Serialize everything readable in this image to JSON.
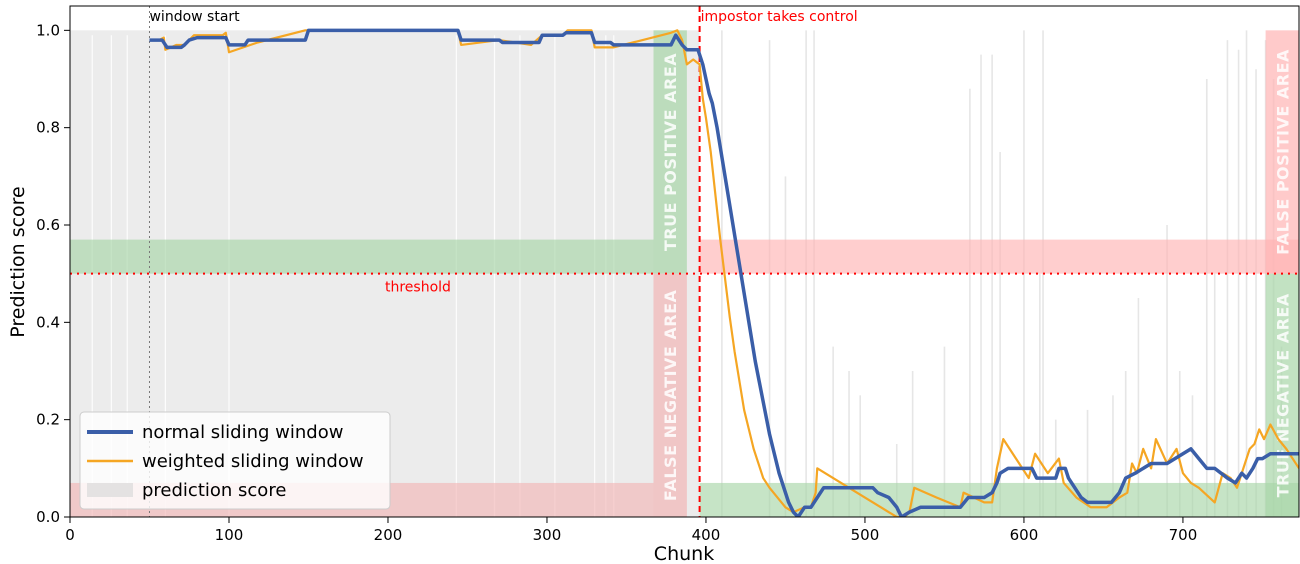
{
  "chart_data": {
    "type": "line",
    "xlabel": "Chunk",
    "ylabel": "Prediction score",
    "xlim": [
      0,
      773
    ],
    "ylim": [
      0,
      1.05
    ],
    "x_ticks": [
      0,
      100,
      200,
      300,
      400,
      500,
      600,
      700
    ],
    "y_ticks": [
      0.0,
      0.2,
      0.4,
      0.6,
      0.8,
      1.0
    ],
    "y_tick_labels": [
      "0.0",
      "0.2",
      "0.4",
      "0.6",
      "0.8",
      "1.0"
    ],
    "threshold": {
      "value": 0.5,
      "label": "threshold",
      "color": "#ff0000"
    },
    "window_start": {
      "x": 50,
      "label": "window start"
    },
    "impostor": {
      "x": 396,
      "label": "impostor takes control",
      "color": "#ff0000"
    },
    "areas": [
      {
        "label": "TRUE POSITIVE AREA",
        "color": "#a8d5a8",
        "x_range": [
          0,
          367
        ],
        "y_range": [
          0.5,
          0.57
        ]
      },
      {
        "label": "FALSE NEGATIVE AREA",
        "color": "#f2b7b7",
        "x_range": [
          0,
          367
        ],
        "y_range": [
          0,
          0.07
        ]
      },
      {
        "label": "FALSE POSITIVE AREA",
        "color": "#ffb3b3",
        "x_range": [
          396,
          773
        ],
        "y_range": [
          0.5,
          0.57
        ]
      },
      {
        "label": "TRUE NEGATIVE AREA",
        "color": "#a8d5a8",
        "x_range": [
          396,
          773
        ],
        "y_range": [
          0,
          0.07
        ]
      }
    ],
    "series": [
      {
        "name": "normal sliding window",
        "color": "#3a5ea8",
        "points": [
          [
            50,
            0.98
          ],
          [
            58,
            0.98
          ],
          [
            60,
            0.97
          ],
          [
            61,
            0.965
          ],
          [
            70,
            0.965
          ],
          [
            72,
            0.97
          ],
          [
            75,
            0.98
          ],
          [
            80,
            0.985
          ],
          [
            98,
            0.985
          ],
          [
            100,
            0.97
          ],
          [
            110,
            0.97
          ],
          [
            112,
            0.98
          ],
          [
            148,
            0.98
          ],
          [
            150,
            1.0
          ],
          [
            244,
            1.0
          ],
          [
            246,
            0.98
          ],
          [
            270,
            0.98
          ],
          [
            272,
            0.975
          ],
          [
            295,
            0.975
          ],
          [
            297,
            0.99
          ],
          [
            310,
            0.99
          ],
          [
            312,
            0.995
          ],
          [
            328,
            0.995
          ],
          [
            330,
            0.975
          ],
          [
            340,
            0.975
          ],
          [
            342,
            0.97
          ],
          [
            375,
            0.97
          ],
          [
            378,
            0.97
          ],
          [
            381,
            0.99
          ],
          [
            385,
            0.97
          ],
          [
            388,
            0.96
          ],
          [
            395,
            0.96
          ],
          [
            398,
            0.93
          ],
          [
            402,
            0.87
          ],
          [
            404,
            0.85
          ],
          [
            407,
            0.8
          ],
          [
            410,
            0.74
          ],
          [
            413,
            0.68
          ],
          [
            416,
            0.62
          ],
          [
            419,
            0.56
          ],
          [
            422,
            0.5
          ],
          [
            425,
            0.44
          ],
          [
            428,
            0.38
          ],
          [
            431,
            0.32
          ],
          [
            434,
            0.27
          ],
          [
            437,
            0.22
          ],
          [
            440,
            0.17
          ],
          [
            443,
            0.13
          ],
          [
            446,
            0.09
          ],
          [
            449,
            0.06
          ],
          [
            452,
            0.03
          ],
          [
            455,
            0.01
          ],
          [
            458,
            0.0
          ],
          [
            462,
            0.02
          ],
          [
            466,
            0.02
          ],
          [
            470,
            0.04
          ],
          [
            474,
            0.06
          ],
          [
            490,
            0.06
          ],
          [
            505,
            0.06
          ],
          [
            508,
            0.05
          ],
          [
            515,
            0.04
          ],
          [
            520,
            0.02
          ],
          [
            523,
            0.0
          ],
          [
            528,
            0.01
          ],
          [
            535,
            0.02
          ],
          [
            560,
            0.02
          ],
          [
            565,
            0.04
          ],
          [
            575,
            0.04
          ],
          [
            580,
            0.05
          ],
          [
            583,
            0.07
          ],
          [
            585,
            0.09
          ],
          [
            590,
            0.1
          ],
          [
            605,
            0.1
          ],
          [
            608,
            0.08
          ],
          [
            620,
            0.08
          ],
          [
            622,
            0.1
          ],
          [
            626,
            0.1
          ],
          [
            628,
            0.08
          ],
          [
            632,
            0.06
          ],
          [
            636,
            0.04
          ],
          [
            640,
            0.03
          ],
          [
            655,
            0.03
          ],
          [
            660,
            0.05
          ],
          [
            664,
            0.08
          ],
          [
            670,
            0.09
          ],
          [
            675,
            0.1
          ],
          [
            680,
            0.11
          ],
          [
            690,
            0.11
          ],
          [
            695,
            0.12
          ],
          [
            700,
            0.13
          ],
          [
            705,
            0.14
          ],
          [
            710,
            0.12
          ],
          [
            715,
            0.1
          ],
          [
            720,
            0.1
          ],
          [
            728,
            0.08
          ],
          [
            733,
            0.07
          ],
          [
            737,
            0.09
          ],
          [
            740,
            0.08
          ],
          [
            744,
            0.1
          ],
          [
            747,
            0.12
          ],
          [
            750,
            0.12
          ],
          [
            755,
            0.13
          ],
          [
            773,
            0.13
          ]
        ]
      },
      {
        "name": "weighted sliding window",
        "color": "#f5a623",
        "points": [
          [
            50,
            0.98
          ],
          [
            56,
            0.98
          ],
          [
            59,
            0.985
          ],
          [
            60,
            0.96
          ],
          [
            67,
            0.97
          ],
          [
            72,
            0.97
          ],
          [
            78,
            0.99
          ],
          [
            96,
            0.99
          ],
          [
            98,
            0.995
          ],
          [
            100,
            0.955
          ],
          [
            118,
            0.975
          ],
          [
            148,
            1.0
          ],
          [
            244,
            1.0
          ],
          [
            246,
            0.97
          ],
          [
            270,
            0.98
          ],
          [
            290,
            0.97
          ],
          [
            297,
            0.99
          ],
          [
            310,
            0.99
          ],
          [
            313,
            1.0
          ],
          [
            328,
            1.0
          ],
          [
            330,
            0.965
          ],
          [
            342,
            0.965
          ],
          [
            378,
            0.995
          ],
          [
            382,
            1.0
          ],
          [
            385,
            0.98
          ],
          [
            388,
            0.93
          ],
          [
            392,
            0.94
          ],
          [
            394,
            0.935
          ],
          [
            396,
            0.93
          ],
          [
            398,
            0.86
          ],
          [
            400,
            0.82
          ],
          [
            403,
            0.75
          ],
          [
            406,
            0.66
          ],
          [
            409,
            0.57
          ],
          [
            412,
            0.49
          ],
          [
            415,
            0.41
          ],
          [
            418,
            0.34
          ],
          [
            421,
            0.28
          ],
          [
            424,
            0.22
          ],
          [
            427,
            0.18
          ],
          [
            430,
            0.14
          ],
          [
            433,
            0.11
          ],
          [
            436,
            0.08
          ],
          [
            440,
            0.06
          ],
          [
            445,
            0.04
          ],
          [
            450,
            0.02
          ],
          [
            455,
            0.01
          ],
          [
            462,
            0.02
          ],
          [
            466,
            0.02
          ],
          [
            469,
            0.05
          ],
          [
            470,
            0.1
          ],
          [
            485,
            0.07
          ],
          [
            500,
            0.04
          ],
          [
            515,
            0.01
          ],
          [
            520,
            0.0
          ],
          [
            525,
            0.0
          ],
          [
            528,
            0.01
          ],
          [
            531,
            0.06
          ],
          [
            545,
            0.04
          ],
          [
            560,
            0.02
          ],
          [
            562,
            0.05
          ],
          [
            575,
            0.03
          ],
          [
            580,
            0.03
          ],
          [
            583,
            0.1
          ],
          [
            587,
            0.16
          ],
          [
            595,
            0.12
          ],
          [
            603,
            0.08
          ],
          [
            607,
            0.13
          ],
          [
            615,
            0.09
          ],
          [
            622,
            0.12
          ],
          [
            625,
            0.07
          ],
          [
            633,
            0.04
          ],
          [
            642,
            0.02
          ],
          [
            652,
            0.02
          ],
          [
            660,
            0.04
          ],
          [
            665,
            0.05
          ],
          [
            668,
            0.11
          ],
          [
            671,
            0.09
          ],
          [
            675,
            0.14
          ],
          [
            680,
            0.1
          ],
          [
            683,
            0.16
          ],
          [
            690,
            0.11
          ],
          [
            696,
            0.14
          ],
          [
            700,
            0.09
          ],
          [
            705,
            0.07
          ],
          [
            710,
            0.06
          ],
          [
            720,
            0.03
          ],
          [
            725,
            0.09
          ],
          [
            730,
            0.08
          ],
          [
            734,
            0.06
          ],
          [
            738,
            0.1
          ],
          [
            742,
            0.14
          ],
          [
            745,
            0.15
          ],
          [
            748,
            0.18
          ],
          [
            751,
            0.16
          ],
          [
            755,
            0.19
          ],
          [
            760,
            0.16
          ],
          [
            765,
            0.14
          ],
          [
            773,
            0.1
          ]
        ]
      },
      {
        "name": "prediction score",
        "color": "#dddddd"
      }
    ],
    "legend": {
      "location": "bottom-left",
      "entries": [
        "normal sliding window",
        "weighted sliding window",
        "prediction score"
      ]
    }
  }
}
